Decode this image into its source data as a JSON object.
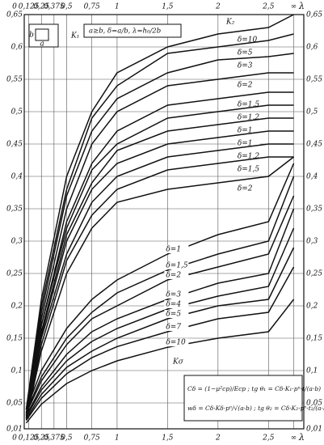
{
  "chart_data": {
    "type": "line",
    "x_label": "λ",
    "x": [
      0.1,
      0.25,
      0.5,
      0.75,
      1,
      1.5,
      2,
      2.5,
      2.75
    ],
    "xlim": [
      0.08,
      2.85
    ],
    "xticks": [
      {
        "value": 0,
        "label": "0"
      },
      {
        "value": 0.125,
        "label": "0,125"
      },
      {
        "value": 0.25,
        "label": "0,25"
      },
      {
        "value": 0.375,
        "label": "0,375"
      },
      {
        "value": 0.5,
        "label": "0,5"
      },
      {
        "value": 0.75,
        "label": "0,75"
      },
      1,
      {
        "value": 1.5,
        "label": "1,5"
      },
      2,
      {
        "value": 2.5,
        "label": "2,5"
      },
      {
        "value": 2.75,
        "label": "∞"
      }
    ],
    "ylim": [
      0.01,
      0.65
    ],
    "yticks": [
      {
        "value": 0.01,
        "label": "0,01"
      },
      {
        "value": 0.05,
        "label": "0,05"
      },
      {
        "value": 0.1,
        "label": "0,1"
      },
      {
        "value": 0.15,
        "label": "0,15"
      },
      {
        "value": 0.2,
        "label": "0,2"
      },
      {
        "value": 0.25,
        "label": "0,25"
      },
      {
        "value": 0.3,
        "label": "0,3"
      },
      {
        "value": 0.35,
        "label": "0,35"
      },
      {
        "value": 0.4,
        "label": "0,4"
      },
      {
        "value": 0.45,
        "label": "0,45"
      },
      {
        "value": 0.5,
        "label": "0,5"
      },
      {
        "value": 0.55,
        "label": "0,55"
      },
      {
        "value": 0.6,
        "label": "0,6"
      },
      {
        "value": 0.65,
        "label": "0,65"
      }
    ],
    "grid": true,
    "color": "#111111",
    "series": [
      {
        "name": "δ=10",
        "values": [
          0.04,
          0.21,
          0.4,
          0.5,
          0.56,
          0.6,
          0.62,
          0.63,
          0.65
        ]
      },
      {
        "name": "δ=5",
        "values": [
          0.04,
          0.2,
          0.38,
          0.49,
          0.54,
          0.59,
          0.6,
          0.61,
          0.62
        ]
      },
      {
        "name": "δ=3",
        "values": [
          0.035,
          0.19,
          0.37,
          0.47,
          0.52,
          0.56,
          0.58,
          0.585,
          0.59
        ]
      },
      {
        "name": "δ=2",
        "values": [
          0.034,
          0.18,
          0.35,
          0.45,
          0.5,
          0.54,
          0.55,
          0.56,
          0.56
        ]
      },
      {
        "name": "δ=1,5",
        "values": [
          0.032,
          0.17,
          0.33,
          0.42,
          0.47,
          0.51,
          0.52,
          0.53,
          0.53
        ]
      },
      {
        "name": "δ=1,2",
        "values": [
          0.031,
          0.17,
          0.32,
          0.41,
          0.45,
          0.49,
          0.5,
          0.51,
          0.51
        ]
      },
      {
        "name": "δ=1",
        "values": [
          0.03,
          0.16,
          0.31,
          0.39,
          0.44,
          0.47,
          0.48,
          0.49,
          0.49
        ]
      },
      {
        "name": "δ=1",
        "values": [
          0.028,
          0.155,
          0.3,
          0.38,
          0.42,
          0.45,
          0.46,
          0.47,
          0.47
        ]
      },
      {
        "name": "δ=1,2",
        "values": [
          0.027,
          0.15,
          0.28,
          0.36,
          0.4,
          0.43,
          0.44,
          0.45,
          0.45
        ]
      },
      {
        "name": "δ=1,5",
        "values": [
          0.026,
          0.14,
          0.27,
          0.34,
          0.38,
          0.41,
          0.42,
          0.43,
          0.43
        ]
      },
      {
        "name": "δ=2",
        "values": [
          0.024,
          0.13,
          0.25,
          0.32,
          0.36,
          0.38,
          0.39,
          0.4,
          0.43
        ]
      },
      {
        "name": "δ=1",
        "values": [
          0.04,
          0.1,
          0.165,
          0.21,
          0.24,
          0.28,
          0.31,
          0.33,
          0.42
        ]
      },
      {
        "name": "δ=1,5",
        "values": [
          0.036,
          0.09,
          0.15,
          0.19,
          0.22,
          0.255,
          0.28,
          0.3,
          0.4
        ]
      },
      {
        "name": "δ=2",
        "values": [
          0.034,
          0.084,
          0.14,
          0.18,
          0.2,
          0.24,
          0.26,
          0.28,
          0.37
        ]
      },
      {
        "name": "δ=3",
        "values": [
          0.03,
          0.075,
          0.125,
          0.16,
          0.18,
          0.21,
          0.235,
          0.25,
          0.35
        ]
      },
      {
        "name": "δ=4",
        "values": [
          0.028,
          0.07,
          0.115,
          0.145,
          0.165,
          0.195,
          0.215,
          0.23,
          0.32
        ]
      },
      {
        "name": "δ=5",
        "values": [
          0.025,
          0.063,
          0.105,
          0.13,
          0.15,
          0.18,
          0.2,
          0.21,
          0.29
        ]
      },
      {
        "name": "δ=7",
        "values": [
          0.023,
          0.057,
          0.095,
          0.12,
          0.137,
          0.16,
          0.18,
          0.19,
          0.26
        ]
      },
      {
        "name": "δ=10",
        "values": [
          0.019,
          0.048,
          0.08,
          0.1,
          0.115,
          0.136,
          0.15,
          0.16,
          0.21
        ]
      }
    ],
    "annotations": [
      "K₂",
      "K₁",
      "Kσ",
      "a≥b, δ=a/b, λ=h₀/2b",
      "a",
      "b",
      "Cδ = (1−μ²cp)/Ecp ;  tg θ₁ = Cδ·K₁·pⁿ·t/(a·b)",
      "wδ = Cδ·Kδ·pⁿ/√(a·b) ;  tg θ₂ = Cδ·K₂·pⁿ·t₂/(a·b)"
    ]
  }
}
